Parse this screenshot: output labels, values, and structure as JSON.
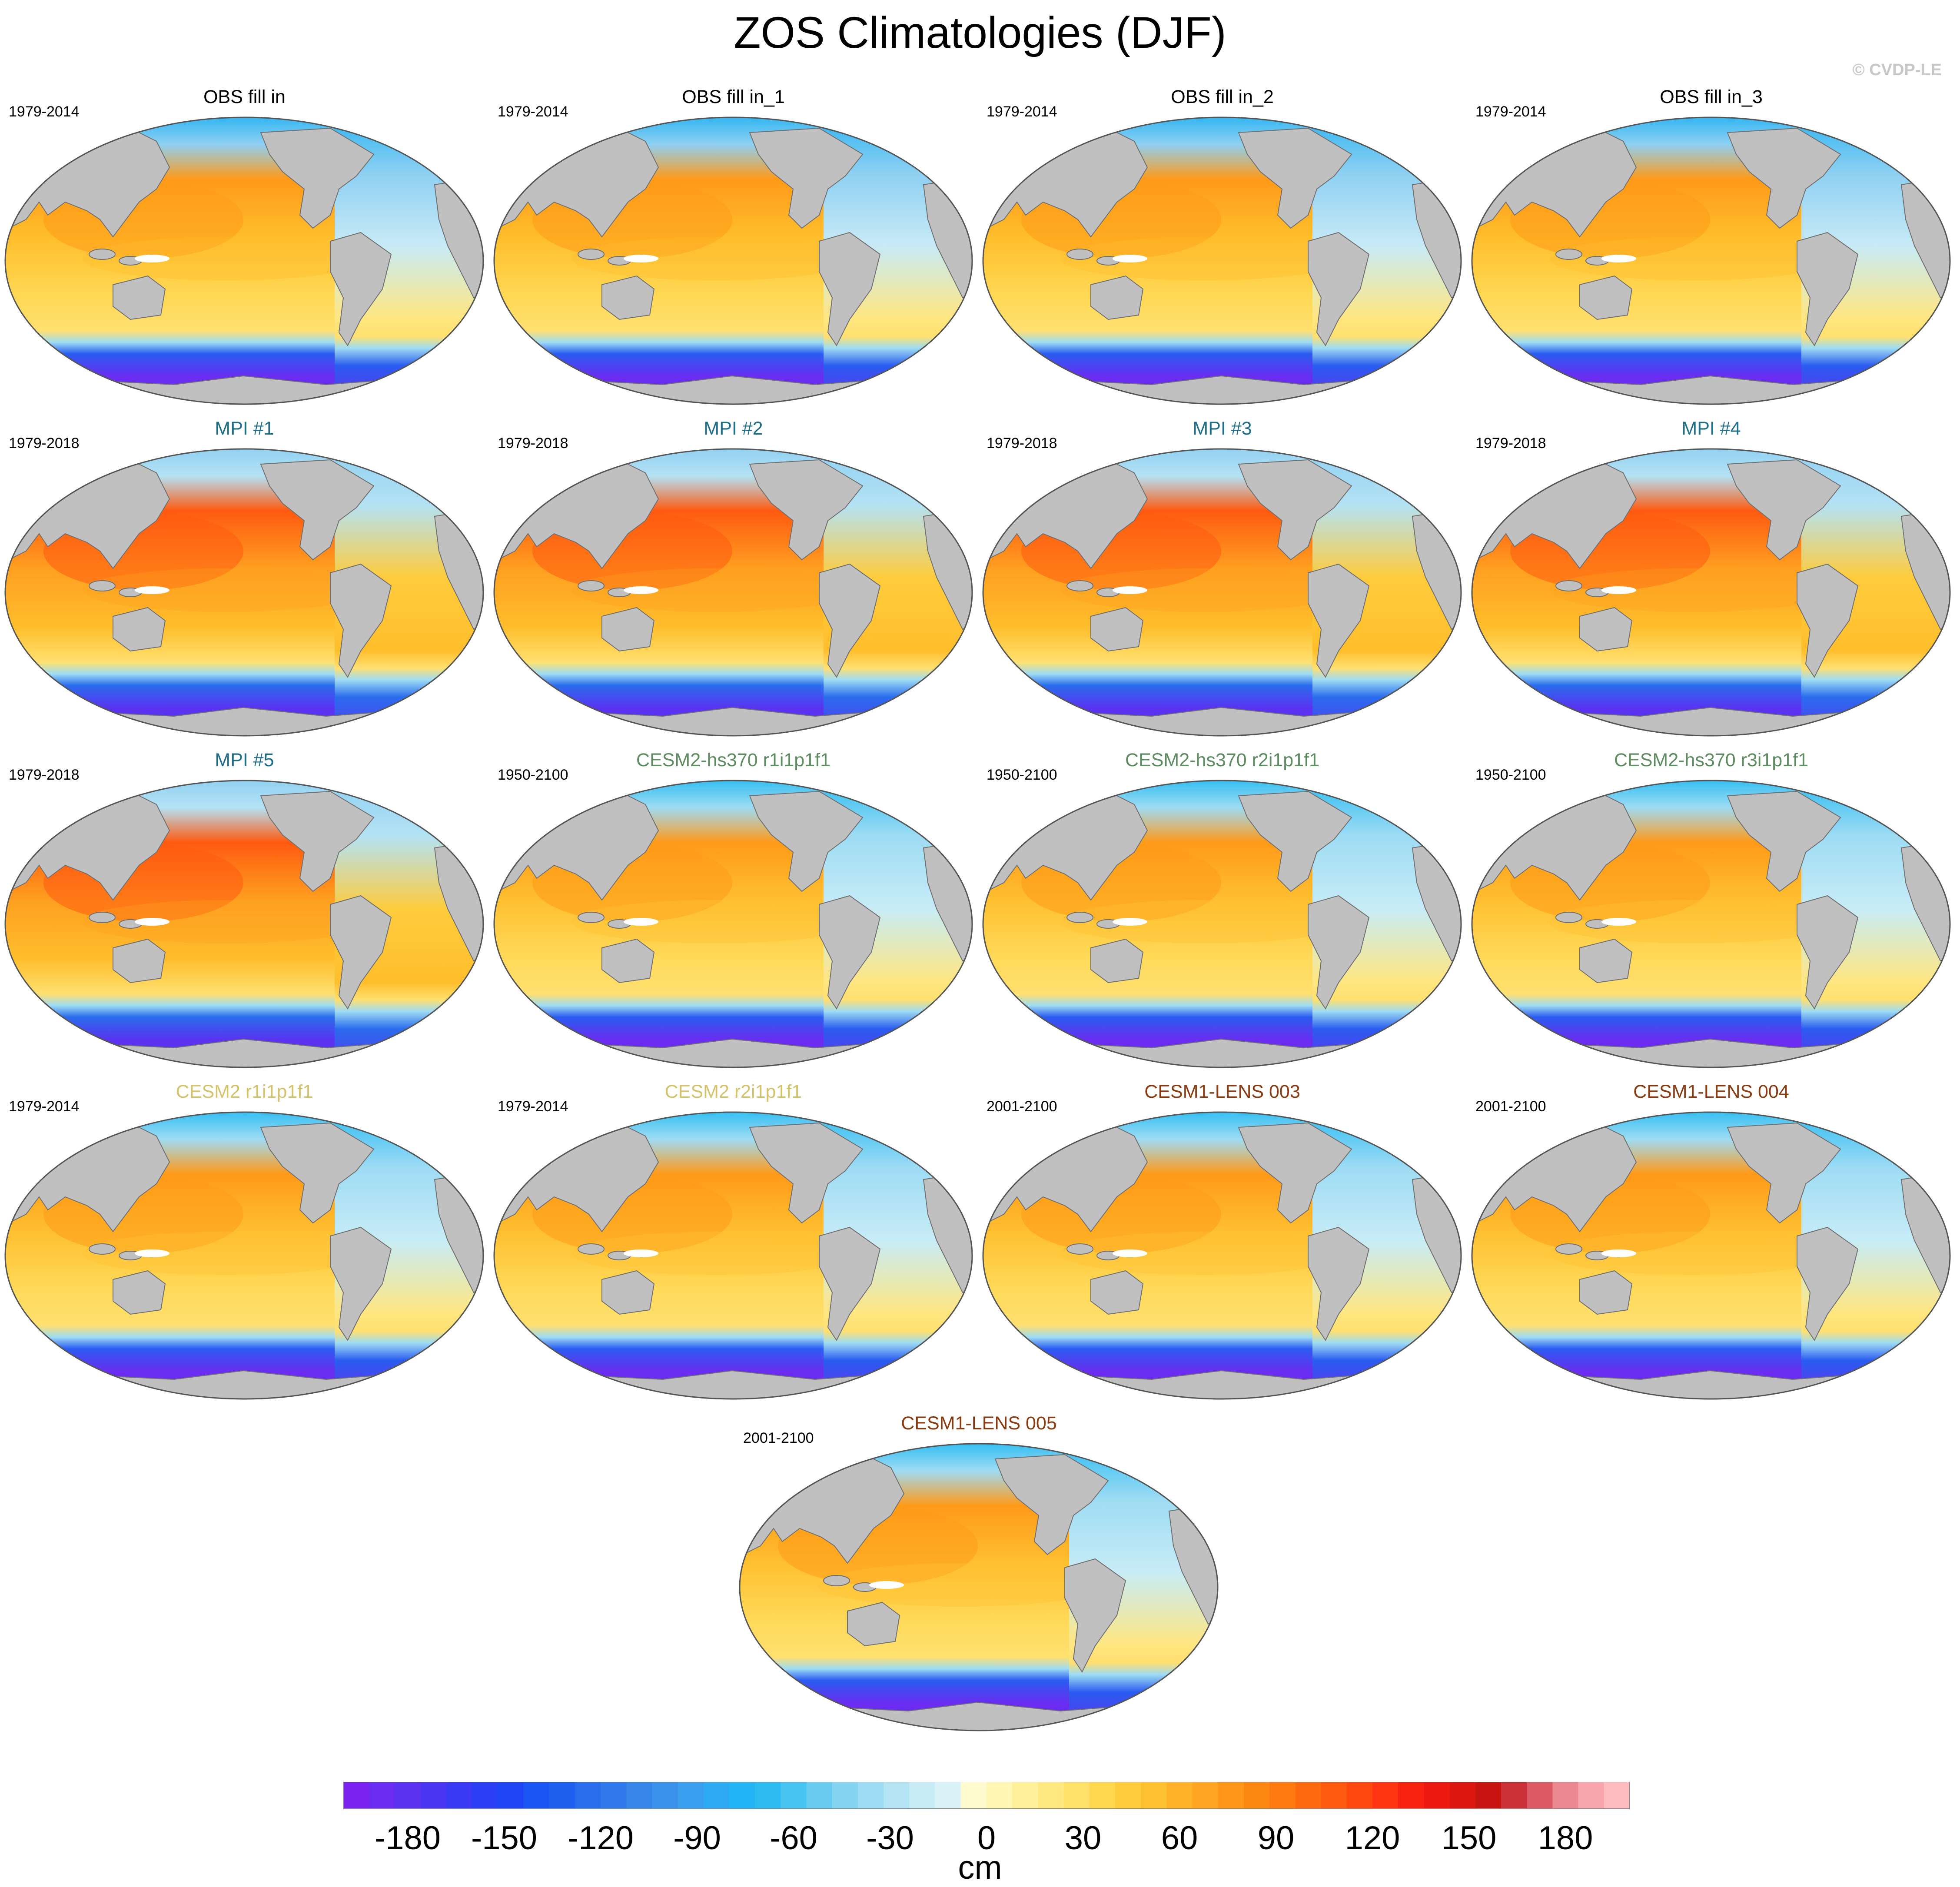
{
  "title": "ZOS Climatologies (DJF)",
  "credit": "© CVDP-LE",
  "panels": [
    {
      "title": "OBS fill in",
      "period": "1979-2014",
      "title_color": "#000000",
      "style": "obs"
    },
    {
      "title": "OBS fill in_1",
      "period": "1979-2014",
      "title_color": "#000000",
      "style": "obs"
    },
    {
      "title": "OBS fill in_2",
      "period": "1979-2014",
      "title_color": "#000000",
      "style": "obs"
    },
    {
      "title": "OBS fill in_3",
      "period": "1979-2014",
      "title_color": "#000000",
      "style": "obs"
    },
    {
      "title": "MPI #1",
      "period": "1979-2018",
      "title_color": "#1f6f8b",
      "style": "mpi"
    },
    {
      "title": "MPI #2",
      "period": "1979-2018",
      "title_color": "#1f6f8b",
      "style": "mpi"
    },
    {
      "title": "MPI #3",
      "period": "1979-2018",
      "title_color": "#1f6f8b",
      "style": "mpi"
    },
    {
      "title": "MPI #4",
      "period": "1979-2018",
      "title_color": "#1f6f8b",
      "style": "mpi"
    },
    {
      "title": "MPI #5",
      "period": "1979-2018",
      "title_color": "#1f6f8b",
      "style": "mpi"
    },
    {
      "title": "CESM2-hs370 r1i1p1f1",
      "period": "1950-2100",
      "title_color": "#5e8c61",
      "style": "cesm"
    },
    {
      "title": "CESM2-hs370 r2i1p1f1",
      "period": "1950-2100",
      "title_color": "#5e8c61",
      "style": "cesm"
    },
    {
      "title": "CESM2-hs370 r3i1p1f1",
      "period": "1950-2100",
      "title_color": "#5e8c61",
      "style": "cesm"
    },
    {
      "title": "CESM2 r1i1p1f1",
      "period": "1979-2014",
      "title_color": "#d4c26a",
      "style": "cesm"
    },
    {
      "title": "CESM2 r2i1p1f1",
      "period": "1979-2014",
      "title_color": "#d4c26a",
      "style": "cesm"
    },
    {
      "title": "CESM1-LENS 003",
      "period": "2001-2100",
      "title_color": "#8b3a0f",
      "style": "cesm"
    },
    {
      "title": "CESM1-LENS 004",
      "period": "2001-2100",
      "title_color": "#8b3a0f",
      "style": "cesm"
    },
    {
      "title": "CESM1-LENS 005",
      "period": "2001-2100",
      "title_color": "#8b3a0f",
      "style": "cesm"
    }
  ],
  "colorbar": {
    "units": "cm",
    "min": -200,
    "max": 200,
    "tick_values": [
      -180,
      -150,
      -120,
      -90,
      -60,
      -30,
      0,
      30,
      60,
      90,
      120,
      150,
      180
    ],
    "tick_labels": [
      "-180",
      "-150",
      "-120",
      "-90",
      "-60",
      "-30",
      "0",
      "30",
      "60",
      "90",
      "120",
      "150",
      "180"
    ],
    "colors": [
      "#7b22f0",
      "#6a2cf0",
      "#5a32f0",
      "#4a36f2",
      "#3a3af4",
      "#2a3ef6",
      "#1e46f6",
      "#1a55f4",
      "#2060f0",
      "#2a6cee",
      "#3078ec",
      "#3686ea",
      "#3a92ea",
      "#3a9eee",
      "#2eaaf2",
      "#22b4f4",
      "#2cbcf2",
      "#48c4f0",
      "#68ccf0",
      "#84d4f2",
      "#9edcf4",
      "#b4e4f4",
      "#c8ecf6",
      "#daf2f8",
      "#fffad0",
      "#fff6b4",
      "#fff09a",
      "#ffe880",
      "#ffe068",
      "#ffd850",
      "#ffcc3c",
      "#ffc030",
      "#ffb228",
      "#ffa420",
      "#ff9618",
      "#ff8812",
      "#ff7a10",
      "#ff6a10",
      "#ff5a10",
      "#ff4810",
      "#ff3410",
      "#f82210",
      "#ec1a10",
      "#dc1610",
      "#c81410",
      "#cc3038",
      "#dc5a64",
      "#ec8890",
      "#f8a6ac",
      "#ffbcc0"
    ]
  }
}
